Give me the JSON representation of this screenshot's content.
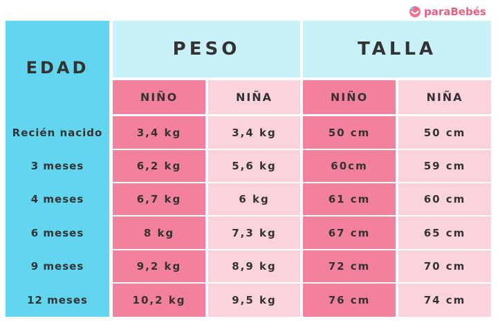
{
  "logo": "paraBebés",
  "table": {
    "header": {
      "edad": "EDAD",
      "peso": "PESO",
      "talla": "TALLA"
    },
    "subheader": [
      "NIÑO",
      "NIÑA",
      "NIÑO",
      "NIÑA"
    ],
    "rows": [
      [
        "Recién nacido",
        "3,4 kg",
        "3,4 kg",
        "50 cm",
        "50 cm"
      ],
      [
        "3 meses",
        "6,2 kg",
        "5,6 kg",
        "60cm",
        "59 cm"
      ],
      [
        "4 meses",
        "6,7 kg",
        "6 kg",
        "61 cm",
        "60 cm"
      ],
      [
        "6 meses",
        "8 kg",
        "7,3 kg",
        "67 cm",
        "65 cm"
      ],
      [
        "9 meses",
        "9,2 kg",
        "8,9 kg",
        "72 cm",
        "70 cm"
      ],
      [
        "12 meses",
        "10,2 kg",
        "9,5 kg",
        "76 cm",
        "74 cm"
      ]
    ]
  }
}
